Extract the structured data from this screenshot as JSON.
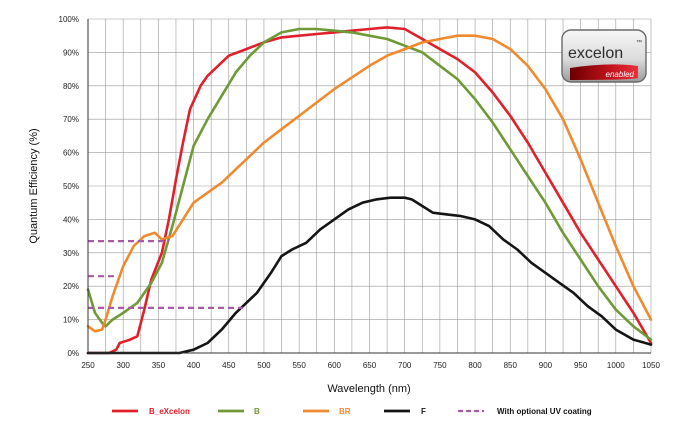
{
  "chart_data": {
    "type": "line",
    "title": "",
    "xlabel": "Wavelength (nm)",
    "ylabel": "Quantum Efficiency (%)",
    "xlim": [
      250,
      1050
    ],
    "ylim": [
      0,
      100
    ],
    "x_ticks": [
      250,
      300,
      350,
      400,
      450,
      500,
      550,
      600,
      650,
      700,
      750,
      800,
      850,
      900,
      950,
      1000,
      1050
    ],
    "y_ticks": [
      0,
      10,
      20,
      30,
      40,
      50,
      60,
      70,
      80,
      90,
      100
    ],
    "y_tick_labels": [
      "0%",
      "10%",
      "20%",
      "30%",
      "40%",
      "50%",
      "60%",
      "70%",
      "80%",
      "90%",
      "100%"
    ],
    "grid": true,
    "legend_position": "bottom",
    "series": [
      {
        "name": "B_eXcelon",
        "color": "#e0202a",
        "dash": false,
        "points": [
          [
            250,
            0
          ],
          [
            260,
            0
          ],
          [
            270,
            0
          ],
          [
            280,
            0
          ],
          [
            290,
            1
          ],
          [
            295,
            3
          ],
          [
            310,
            4
          ],
          [
            320,
            5
          ],
          [
            330,
            13
          ],
          [
            340,
            22
          ],
          [
            355,
            30
          ],
          [
            365,
            40
          ],
          [
            375,
            52
          ],
          [
            385,
            63
          ],
          [
            395,
            73
          ],
          [
            410,
            80
          ],
          [
            420,
            83
          ],
          [
            430,
            85
          ],
          [
            450,
            89
          ],
          [
            475,
            91
          ],
          [
            500,
            93
          ],
          [
            525,
            94.5
          ],
          [
            550,
            95
          ],
          [
            575,
            95.5
          ],
          [
            600,
            96
          ],
          [
            625,
            96.5
          ],
          [
            650,
            97
          ],
          [
            675,
            97.5
          ],
          [
            700,
            97
          ],
          [
            725,
            94
          ],
          [
            750,
            91
          ],
          [
            775,
            88
          ],
          [
            800,
            84
          ],
          [
            825,
            78
          ],
          [
            850,
            71
          ],
          [
            875,
            63
          ],
          [
            900,
            54
          ],
          [
            925,
            45
          ],
          [
            950,
            36
          ],
          [
            975,
            28
          ],
          [
            1000,
            20
          ],
          [
            1025,
            12
          ],
          [
            1050,
            3
          ]
        ]
      },
      {
        "name": "B",
        "color": "#6f9a36",
        "dash": false,
        "points": [
          [
            250,
            19
          ],
          [
            260,
            12
          ],
          [
            270,
            9
          ],
          [
            275,
            8
          ],
          [
            285,
            10
          ],
          [
            300,
            12
          ],
          [
            320,
            15
          ],
          [
            340,
            21
          ],
          [
            355,
            27
          ],
          [
            370,
            38
          ],
          [
            385,
            50
          ],
          [
            400,
            62
          ],
          [
            420,
            70
          ],
          [
            440,
            77
          ],
          [
            460,
            84
          ],
          [
            480,
            89
          ],
          [
            500,
            93
          ],
          [
            525,
            96
          ],
          [
            550,
            97
          ],
          [
            575,
            97
          ],
          [
            600,
            96.5
          ],
          [
            625,
            96
          ],
          [
            650,
            95
          ],
          [
            675,
            94
          ],
          [
            700,
            92
          ],
          [
            725,
            90
          ],
          [
            750,
            86
          ],
          [
            775,
            82
          ],
          [
            800,
            76
          ],
          [
            825,
            69
          ],
          [
            850,
            61
          ],
          [
            875,
            53
          ],
          [
            900,
            45
          ],
          [
            925,
            36
          ],
          [
            950,
            28
          ],
          [
            975,
            20
          ],
          [
            1000,
            13
          ],
          [
            1025,
            8
          ],
          [
            1050,
            4
          ]
        ]
      },
      {
        "name": "BR",
        "color": "#f08a2e",
        "dash": false,
        "points": [
          [
            250,
            8
          ],
          [
            260,
            6.5
          ],
          [
            270,
            7
          ],
          [
            275,
            10
          ],
          [
            285,
            17
          ],
          [
            300,
            26
          ],
          [
            315,
            32
          ],
          [
            330,
            35
          ],
          [
            345,
            36
          ],
          [
            355,
            34
          ],
          [
            370,
            35
          ],
          [
            385,
            40
          ],
          [
            400,
            45
          ],
          [
            420,
            48
          ],
          [
            440,
            51
          ],
          [
            460,
            55
          ],
          [
            480,
            59
          ],
          [
            500,
            63
          ],
          [
            525,
            67
          ],
          [
            550,
            71
          ],
          [
            575,
            75
          ],
          [
            600,
            79
          ],
          [
            625,
            82.5
          ],
          [
            650,
            86
          ],
          [
            675,
            89
          ],
          [
            700,
            91
          ],
          [
            725,
            93
          ],
          [
            750,
            94
          ],
          [
            775,
            95
          ],
          [
            800,
            95
          ],
          [
            825,
            94
          ],
          [
            850,
            91
          ],
          [
            875,
            86
          ],
          [
            900,
            79
          ],
          [
            925,
            70
          ],
          [
            950,
            58
          ],
          [
            975,
            45
          ],
          [
            1000,
            32
          ],
          [
            1025,
            20
          ],
          [
            1050,
            10
          ]
        ]
      },
      {
        "name": "F",
        "color": "#151515",
        "dash": false,
        "points": [
          [
            250,
            0
          ],
          [
            300,
            0
          ],
          [
            350,
            0
          ],
          [
            380,
            0
          ],
          [
            400,
            1
          ],
          [
            420,
            3
          ],
          [
            440,
            7
          ],
          [
            460,
            12
          ],
          [
            475,
            15
          ],
          [
            490,
            18
          ],
          [
            500,
            21
          ],
          [
            510,
            24
          ],
          [
            525,
            29
          ],
          [
            540,
            31
          ],
          [
            560,
            33
          ],
          [
            580,
            37
          ],
          [
            600,
            40
          ],
          [
            620,
            43
          ],
          [
            640,
            45
          ],
          [
            660,
            46
          ],
          [
            680,
            46.5
          ],
          [
            700,
            46.5
          ],
          [
            710,
            46
          ],
          [
            725,
            44
          ],
          [
            740,
            42
          ],
          [
            760,
            41.5
          ],
          [
            780,
            41
          ],
          [
            800,
            40
          ],
          [
            820,
            38
          ],
          [
            840,
            34
          ],
          [
            860,
            31
          ],
          [
            880,
            27
          ],
          [
            900,
            24
          ],
          [
            920,
            21
          ],
          [
            940,
            18
          ],
          [
            960,
            14
          ],
          [
            980,
            11
          ],
          [
            1000,
            7
          ],
          [
            1025,
            4
          ],
          [
            1050,
            2.5
          ]
        ]
      },
      {
        "name": "With optional UV coating",
        "color": "#a85aa8",
        "dash": true,
        "segments": [
          [
            [
              250,
              33.5
            ],
            [
              365,
              33.5
            ]
          ],
          [
            [
              250,
              23
            ],
            [
              290,
              23
            ]
          ],
          [
            [
              250,
              13.5
            ],
            [
              470,
              13.5
            ]
          ]
        ]
      }
    ]
  },
  "logo": {
    "word": "excelon",
    "tag": "enabled",
    "trademark": "™"
  }
}
